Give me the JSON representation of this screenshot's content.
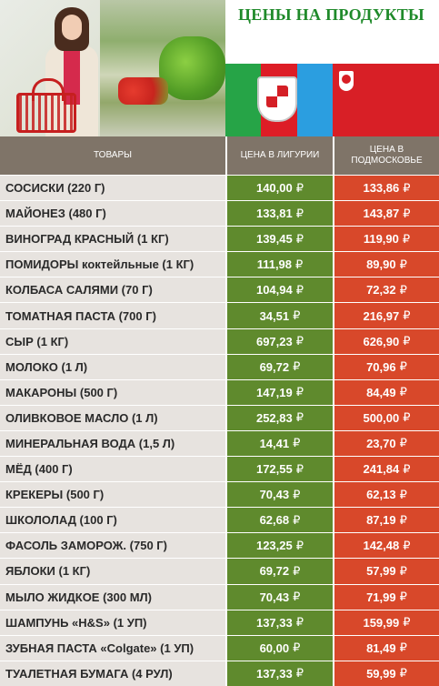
{
  "title": "ЦЕНЫ НА ПРОДУКТЫ",
  "colors": {
    "title": "#1f8a2a",
    "header_bg": "#7f7468",
    "name_bg": "#e7e3df",
    "liguria": "#5f8a2d",
    "moscow_region": "#d8482a"
  },
  "table": {
    "headers": {
      "products": "ТОВАРЫ",
      "liguria": "ЦЕНА В ЛИГУРИИ",
      "moscow_region": "ЦЕНА В ПОДМОСКОВЬЕ"
    },
    "currency": "₽",
    "rows": [
      {
        "name": "СОСИСКИ (220 Г)",
        "liguria": "140,00",
        "moscow_region": "133,86"
      },
      {
        "name": "МАЙОНЕЗ (480 Г)",
        "liguria": "133,81",
        "moscow_region": "143,87"
      },
      {
        "name": "ВИНОГРАД КРАСНЫЙ (1 КГ)",
        "liguria": "139,45",
        "moscow_region": "119,90"
      },
      {
        "name": "ПОМИДОРЫ коктейльные (1 КГ)",
        "liguria": "111,98",
        "moscow_region": "89,90"
      },
      {
        "name": "КОЛБАСА САЛЯМИ (70 Г)",
        "liguria": "104,94",
        "moscow_region": "72,32"
      },
      {
        "name": "ТОМАТНАЯ ПАСТА (700 Г)",
        "liguria": "34,51",
        "moscow_region": "216,97"
      },
      {
        "name": "СЫР (1 КГ)",
        "liguria": "697,23",
        "moscow_region": "626,90"
      },
      {
        "name": "МОЛОКО (1 Л)",
        "liguria": "69,72",
        "moscow_region": "70,96"
      },
      {
        "name": "МАКАРОНЫ (500 Г)",
        "liguria": "147,19",
        "moscow_region": "84,49"
      },
      {
        "name": "ОЛИВКОВОЕ МАСЛО (1 Л)",
        "liguria": "252,83",
        "moscow_region": "500,00"
      },
      {
        "name": "МИНЕРАЛЬНАЯ ВОДА (1,5 Л)",
        "liguria": "14,41",
        "moscow_region": "23,70"
      },
      {
        "name": "МЁД (400 Г)",
        "liguria": "172,55",
        "moscow_region": "241,84"
      },
      {
        "name": "КРЕКЕРЫ (500 Г)",
        "liguria": "70,43",
        "moscow_region": "62,13"
      },
      {
        "name": "ШКОЛОЛАД (100 Г)",
        "liguria": "62,68",
        "moscow_region": "87,19"
      },
      {
        "name": "ФАСОЛЬ ЗАМОРОЖ. (750 Г)",
        "liguria": "123,25",
        "moscow_region": "142,48"
      },
      {
        "name": "ЯБЛОКИ (1 КГ)",
        "liguria": "69,72",
        "moscow_region": "57,99"
      },
      {
        "name": "МЫЛО ЖИДКОЕ (300 МЛ)",
        "liguria": "70,43",
        "moscow_region": "71,99"
      },
      {
        "name": "ШАМПУНЬ «H&S» (1 УП)",
        "liguria": "137,33",
        "moscow_region": "159,99"
      },
      {
        "name": "ЗУБНАЯ ПАСТА «Colgate» (1 УП)",
        "liguria": "60,00",
        "moscow_region": "81,49"
      },
      {
        "name": "ТУАЛЕТНАЯ БУМАГА (4 РУЛ)",
        "liguria": "137,33",
        "moscow_region": "59,99"
      }
    ]
  },
  "images": {
    "photo": "woman-shopping-vegetables",
    "flag_left": "liguria-flag",
    "flag_right": "moscow-oblast-flag"
  }
}
